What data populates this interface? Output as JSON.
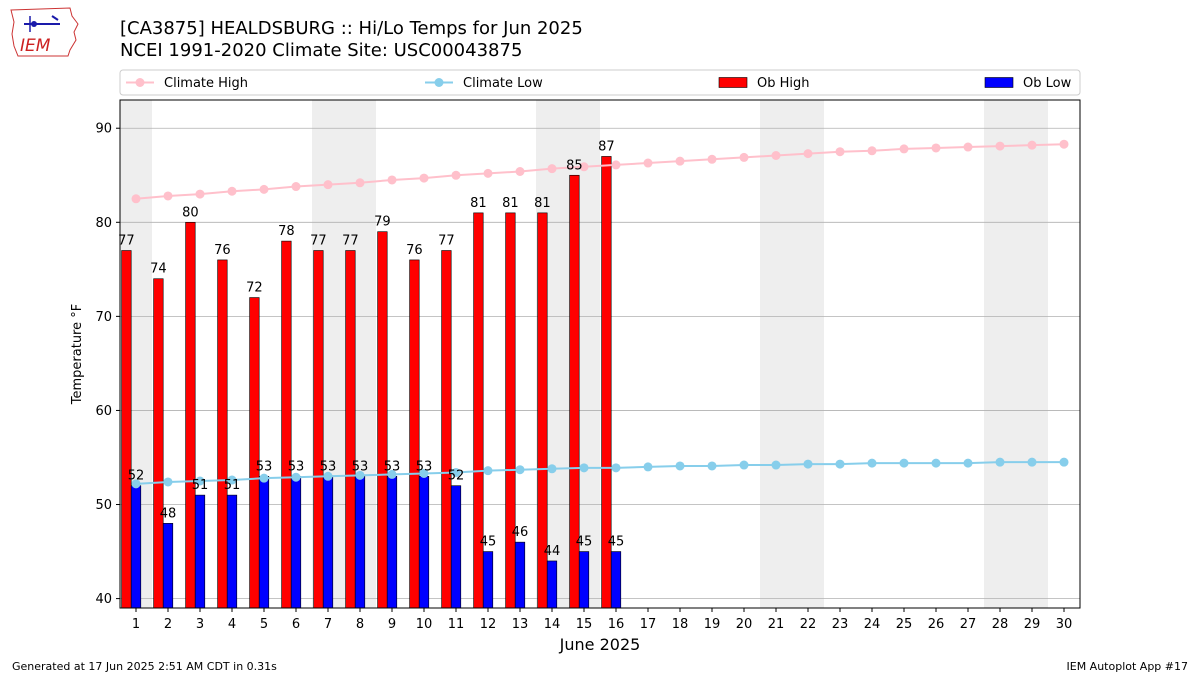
{
  "header": {
    "title_line1": "[CA3875] HEALDSBURG :: Hi/Lo Temps for Jun 2025",
    "title_line2": "NCEI 1991-2020 Climate Site: USC00043875"
  },
  "logo": {
    "text": "IEM"
  },
  "footer": {
    "left": "Generated at 17 Jun 2025 2:51 AM CDT in 0.31s",
    "right": "IEM Autoplot App #17"
  },
  "colors": {
    "ob_high": "#ff0000",
    "ob_low": "#0000ff",
    "climate_high": "#ffc0cb",
    "climate_low": "#87ceeb",
    "weekend_shade": "#eeeeee",
    "grid": "#b0b0b0"
  },
  "chart_data": {
    "type": "bar",
    "xlabel": "June 2025",
    "ylabel": "Temperature °F",
    "ylim": [
      39,
      93
    ],
    "yticks": [
      40,
      50,
      60,
      70,
      80,
      90
    ],
    "xlim": [
      0.5,
      30.5
    ],
    "days": [
      1,
      2,
      3,
      4,
      5,
      6,
      7,
      8,
      9,
      10,
      11,
      12,
      13,
      14,
      15,
      16,
      17,
      18,
      19,
      20,
      21,
      22,
      23,
      24,
      25,
      26,
      27,
      28,
      29,
      30
    ],
    "weekend_spans": [
      [
        0.5,
        1.5
      ],
      [
        6.5,
        8.5
      ],
      [
        13.5,
        15.5
      ],
      [
        20.5,
        22.5
      ],
      [
        27.5,
        29.5
      ]
    ],
    "grid": "horizontal",
    "legend_position": "top",
    "legend": [
      "Climate High",
      "Climate Low",
      "Ob High",
      "Ob Low"
    ],
    "series": [
      {
        "name": "Ob High",
        "kind": "bar",
        "values": [
          77,
          74,
          80,
          76,
          72,
          78,
          77,
          77,
          79,
          76,
          77,
          81,
          81,
          81,
          85,
          87
        ]
      },
      {
        "name": "Ob Low",
        "kind": "bar",
        "values": [
          52,
          48,
          51,
          51,
          53,
          53,
          53,
          53,
          53,
          53,
          52,
          45,
          46,
          44,
          45,
          45
        ]
      },
      {
        "name": "Climate High",
        "kind": "line",
        "values": [
          82.5,
          82.8,
          83.0,
          83.3,
          83.5,
          83.8,
          84.0,
          84.2,
          84.5,
          84.7,
          85.0,
          85.2,
          85.4,
          85.7,
          85.9,
          86.1,
          86.3,
          86.5,
          86.7,
          86.9,
          87.1,
          87.3,
          87.5,
          87.6,
          87.8,
          87.9,
          88.0,
          88.1,
          88.2,
          88.3
        ]
      },
      {
        "name": "Climate Low",
        "kind": "line",
        "values": [
          52.2,
          52.4,
          52.5,
          52.6,
          52.8,
          52.9,
          53.0,
          53.1,
          53.2,
          53.3,
          53.4,
          53.6,
          53.7,
          53.8,
          53.9,
          53.9,
          54.0,
          54.1,
          54.1,
          54.2,
          54.2,
          54.3,
          54.3,
          54.4,
          54.4,
          54.4,
          54.4,
          54.5,
          54.5,
          54.5
        ]
      }
    ]
  }
}
